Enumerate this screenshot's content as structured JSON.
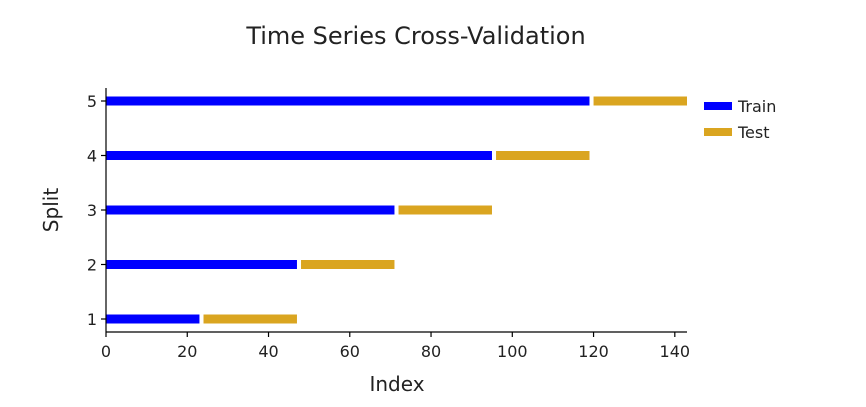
{
  "chart_data": {
    "type": "bar",
    "orientation": "horizontal",
    "title": "Time Series Cross-Validation",
    "xlabel": "Index",
    "ylabel": "Split",
    "xlim": [
      0,
      143
    ],
    "xticks": [
      "0",
      "20",
      "40",
      "60",
      "80",
      "100",
      "120",
      "140"
    ],
    "categories": [
      "1",
      "2",
      "3",
      "4",
      "5"
    ],
    "series": [
      {
        "name": "Train",
        "color": "#0000ff",
        "segments": [
          {
            "split": "1",
            "start": 0,
            "end": 23
          },
          {
            "split": "2",
            "start": 0,
            "end": 47
          },
          {
            "split": "3",
            "start": 0,
            "end": 71
          },
          {
            "split": "4",
            "start": 0,
            "end": 95
          },
          {
            "split": "5",
            "start": 0,
            "end": 119
          }
        ]
      },
      {
        "name": "Test",
        "color": "#daa520",
        "segments": [
          {
            "split": "1",
            "start": 24,
            "end": 47
          },
          {
            "split": "2",
            "start": 48,
            "end": 71
          },
          {
            "split": "3",
            "start": 72,
            "end": 95
          },
          {
            "split": "4",
            "start": 96,
            "end": 119
          },
          {
            "split": "5",
            "start": 120,
            "end": 143
          }
        ]
      }
    ],
    "grid": false,
    "legend_position": "upper right, outside plot"
  }
}
